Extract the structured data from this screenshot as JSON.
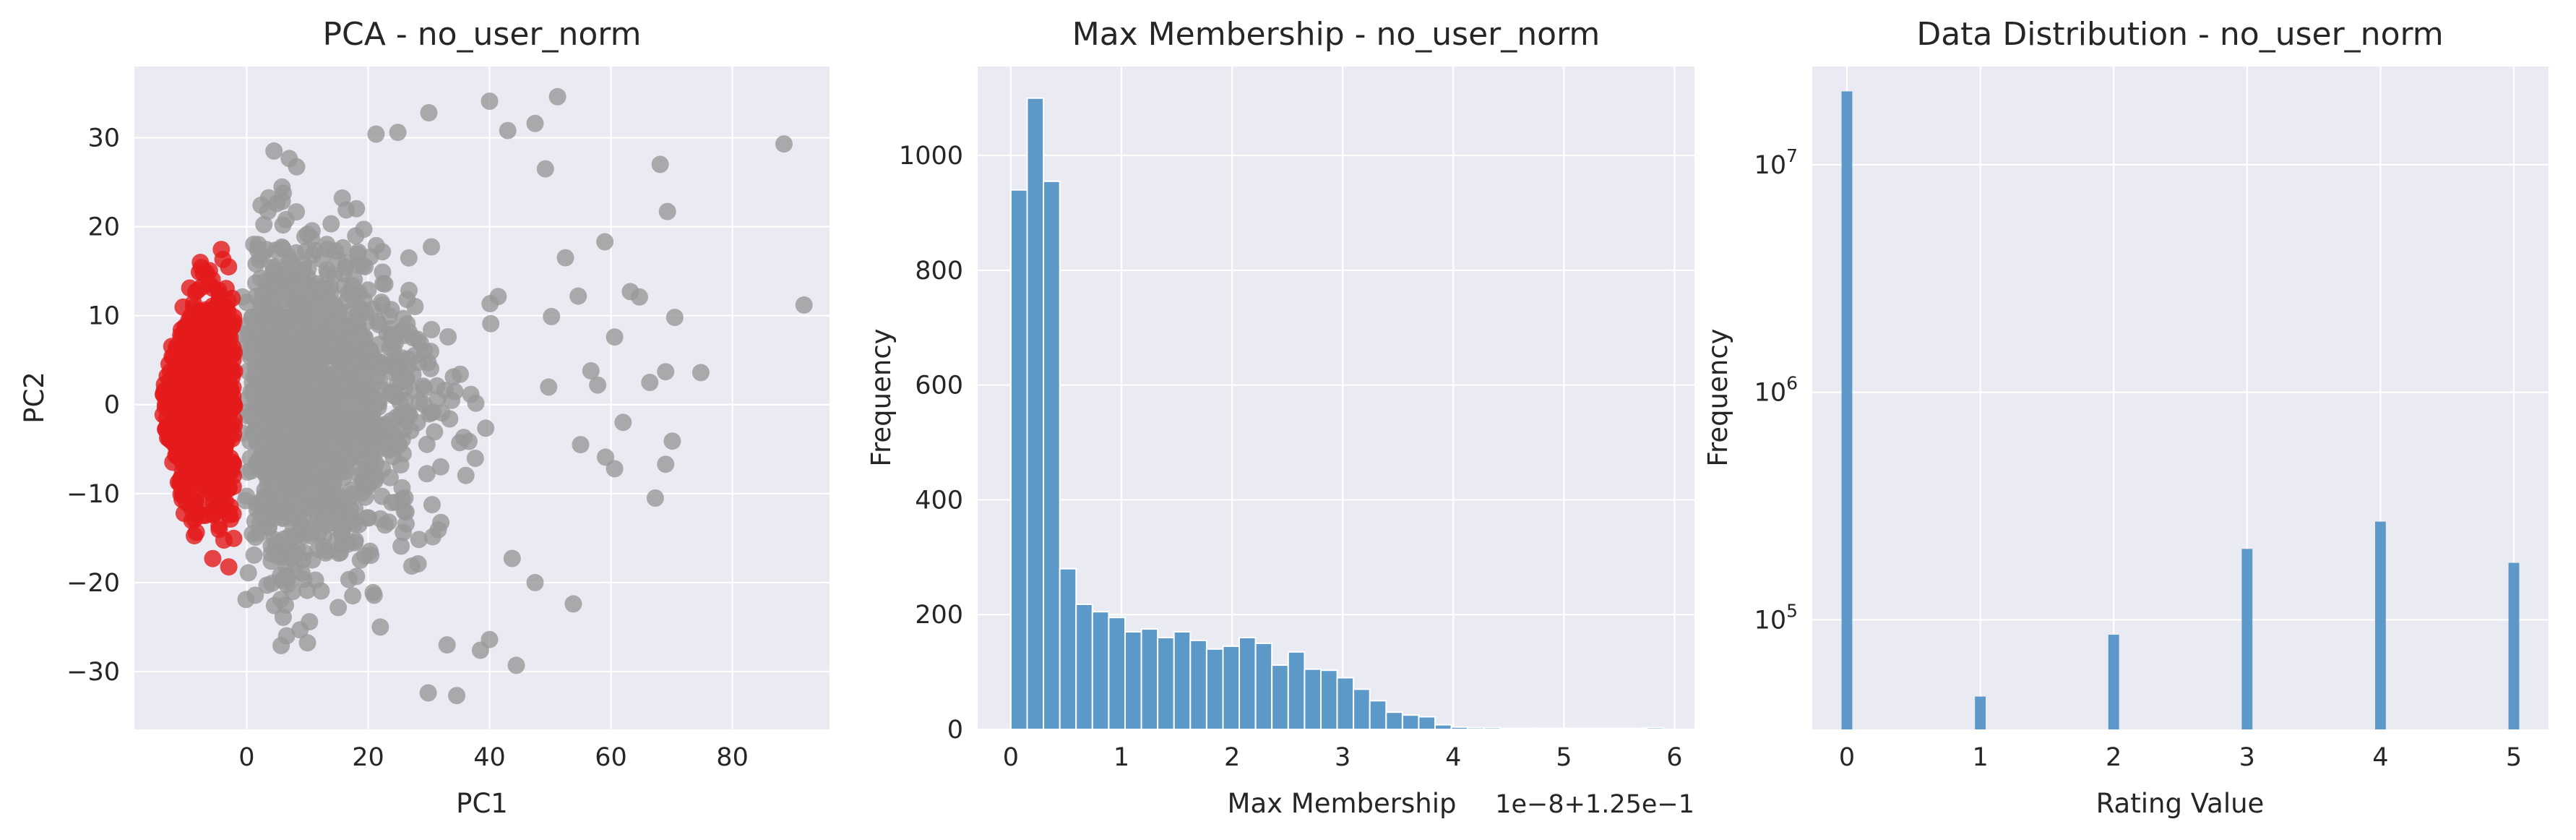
{
  "colors": {
    "panel_bg": "#eaeaf2",
    "grid": "#ffffff",
    "text": "#262626",
    "cluster_red": "#e41a1c",
    "cluster_grey": "#999999",
    "bar_blue": "#4c8fc3"
  },
  "chart_data": [
    {
      "type": "scatter",
      "title": "PCA - no_user_norm",
      "xlabel": "PC1",
      "ylabel": "PC2",
      "xlim": [
        -18.5,
        96
      ],
      "ylim": [
        -36.5,
        38
      ],
      "xticks": [
        0,
        20,
        40,
        60,
        80
      ],
      "yticks": [
        -30,
        -20,
        -10,
        0,
        10,
        20,
        30
      ],
      "xtick_labels": [
        "0",
        "20",
        "40",
        "60",
        "80"
      ],
      "ytick_labels": [
        "−30",
        "−20",
        "−10",
        "0",
        "10",
        "20",
        "30"
      ],
      "grid": true,
      "series": [
        {
          "color": "#999999",
          "points": [
            [
              88.5,
              29.3
            ],
            [
              91.8,
              11.2
            ],
            [
              68.1,
              27.0
            ],
            [
              69.3,
              21.7
            ],
            [
              70.5,
              9.8
            ],
            [
              69.0,
              3.7
            ],
            [
              74.8,
              3.6
            ],
            [
              66.4,
              2.5
            ],
            [
              70.1,
              -4.1
            ],
            [
              69.0,
              -6.7
            ],
            [
              67.3,
              -10.5
            ],
            [
              51.2,
              34.6
            ],
            [
              40.0,
              34.1
            ],
            [
              43.0,
              30.8
            ],
            [
              47.5,
              31.6
            ],
            [
              49.2,
              26.5
            ],
            [
              59.0,
              18.3
            ],
            [
              63.2,
              12.7
            ],
            [
              64.7,
              12.1
            ],
            [
              60.6,
              7.6
            ],
            [
              54.6,
              12.2
            ],
            [
              57.8,
              2.2
            ],
            [
              59.1,
              -5.9
            ],
            [
              60.6,
              -7.2
            ],
            [
              53.8,
              -22.4
            ],
            [
              44.4,
              -29.3
            ],
            [
              38.5,
              -27.6
            ],
            [
              34.6,
              -32.7
            ],
            [
              29.9,
              -32.4
            ],
            [
              40.0,
              -26.4
            ],
            [
              30.0,
              32.8
            ],
            [
              24.9,
              30.6
            ],
            [
              21.3,
              30.4
            ],
            [
              4.5,
              28.5
            ],
            [
              56.7,
              3.8
            ],
            [
              62.0,
              -2.0
            ],
            [
              50.2,
              9.9
            ],
            [
              52.5,
              16.5
            ],
            [
              55.0,
              -4.5
            ],
            [
              47.5,
              -20.0
            ],
            [
              33.0,
              -27.0
            ],
            [
              22.0,
              -25.0
            ]
          ]
        },
        {
          "color": "#e41a1c",
          "points": []
        }
      ]
    },
    {
      "type": "bar",
      "title": "Max Membership - no_user_norm",
      "xlabel": "Max Membership",
      "ylabel": "Frequency",
      "offset_text": "1e−8+1.25e−1",
      "xlim": [
        -0.3,
        6.18
      ],
      "ylim": [
        0,
        1155
      ],
      "xticks": [
        0,
        1,
        2,
        3,
        4,
        5,
        6
      ],
      "yticks": [
        0,
        200,
        400,
        600,
        800,
        1000
      ],
      "xtick_labels": [
        "0",
        "1",
        "2",
        "3",
        "4",
        "5",
        "6"
      ],
      "ytick_labels": [
        "0",
        "200",
        "400",
        "600",
        "800",
        "1000"
      ],
      "grid": true,
      "bin_start": 0.0,
      "bin_width": 0.1475,
      "values": [
        940,
        1100,
        955,
        280,
        218,
        205,
        195,
        170,
        175,
        160,
        170,
        155,
        140,
        145,
        160,
        150,
        112,
        135,
        105,
        103,
        90,
        70,
        50,
        30,
        25,
        22,
        8,
        4,
        3,
        3,
        2,
        2,
        2,
        2,
        2,
        2,
        2,
        2,
        2,
        3
      ]
    },
    {
      "type": "bar",
      "title": "Data Distribution - no_user_norm",
      "xlabel": "Rating Value",
      "ylabel": "Frequency",
      "yscale": "log",
      "xlim": [
        -0.26,
        5.26
      ],
      "ylim": [
        33000,
        27000000
      ],
      "xticks": [
        0,
        1,
        2,
        3,
        4,
        5
      ],
      "xtick_labels": [
        "0",
        "1",
        "2",
        "3",
        "4",
        "5"
      ],
      "yticks": [
        100000,
        1000000,
        10000000
      ],
      "ytick_labels": [
        [
          "10",
          "5"
        ],
        [
          "10",
          "6"
        ],
        [
          "10",
          "7"
        ]
      ],
      "grid": true,
      "bar_width": 0.2,
      "categories": [
        0,
        1,
        2,
        3,
        4,
        5
      ],
      "values": [
        21000000,
        46000,
        86000,
        205000,
        270000,
        178000
      ]
    }
  ]
}
